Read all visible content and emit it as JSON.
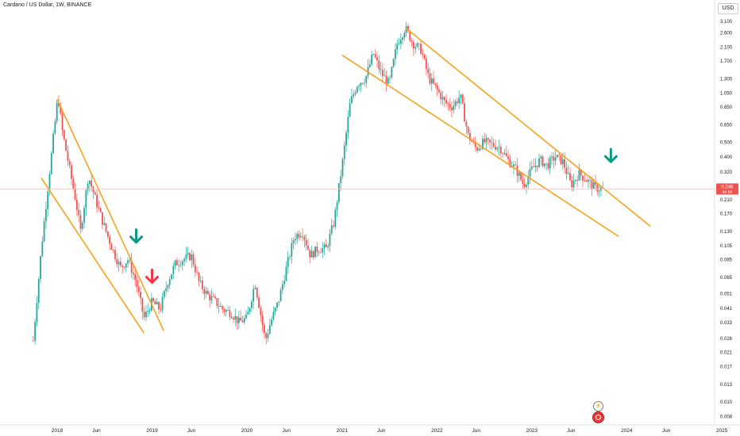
{
  "header": {
    "title": "Cardano / US Dollar, 1W, BINANCE",
    "currency_button": "USD"
  },
  "last_price": {
    "value": "0.246",
    "countdown": "4d 5h"
  },
  "icons": [
    "lightning-icon",
    "flag-icon"
  ],
  "colors": {
    "up": "#26a69a",
    "down": "#ef5350",
    "channel": "#f7a21b",
    "arrow_green": "#089981",
    "arrow_red": "#f23645",
    "price_line": "#f7c2c2"
  },
  "chart_data": {
    "type": "candlestick",
    "x_axis": {
      "tick_labels": [
        "2018",
        "Jun",
        "2019",
        "Jun",
        "2020",
        "Jun",
        "2021",
        "Jun",
        "2022",
        "Jun",
        "2023",
        "Jun",
        "2024",
        "Jun",
        "2025"
      ],
      "tick_dates": [
        "2018-01-01",
        "2018-06-01",
        "2019-01-01",
        "2019-06-01",
        "2020-01-01",
        "2020-06-01",
        "2021-01-01",
        "2021-06-01",
        "2022-01-01",
        "2022-06-01",
        "2023-01-01",
        "2023-06-01",
        "2024-01-01",
        "2024-06-01",
        "2025-01-01"
      ]
    },
    "y_axis": {
      "scale": "log",
      "tick_labels": [
        "3.100",
        "2.600",
        "2.100",
        "1.700",
        "1.300",
        "1.050",
        "0.850",
        "0.650",
        "0.500",
        "0.400",
        "0.320",
        "0.260",
        "0.210",
        "0.170",
        "0.130",
        "0.105",
        "0.085",
        "0.065",
        "0.051",
        "0.041",
        "0.033",
        "0.026",
        "0.021",
        "0.017",
        "0.013",
        "0.010",
        "0.008"
      ],
      "range": [
        0.0075,
        3.2
      ]
    },
    "grid": false,
    "price_anchors": [
      [
        "2017-10-01",
        0.025
      ],
      [
        "2017-11-01",
        0.1
      ],
      [
        "2017-12-01",
        0.3
      ],
      [
        "2018-01-04",
        1.0
      ],
      [
        "2018-01-20",
        0.6
      ],
      [
        "2018-02-15",
        0.35
      ],
      [
        "2018-03-15",
        0.2
      ],
      [
        "2018-04-01",
        0.13
      ],
      [
        "2018-05-01",
        0.3
      ],
      [
        "2018-06-01",
        0.2
      ],
      [
        "2018-07-01",
        0.14
      ],
      [
        "2018-08-01",
        0.1
      ],
      [
        "2018-09-01",
        0.075
      ],
      [
        "2018-10-01",
        0.085
      ],
      [
        "2018-11-01",
        0.06
      ],
      [
        "2018-12-01",
        0.035
      ],
      [
        "2019-01-01",
        0.045
      ],
      [
        "2019-02-01",
        0.04
      ],
      [
        "2019-03-01",
        0.06
      ],
      [
        "2019-04-01",
        0.08
      ],
      [
        "2019-05-01",
        0.085
      ],
      [
        "2019-06-01",
        0.09
      ],
      [
        "2019-07-01",
        0.06
      ],
      [
        "2019-08-01",
        0.05
      ],
      [
        "2019-09-01",
        0.045
      ],
      [
        "2019-10-01",
        0.04
      ],
      [
        "2019-11-01",
        0.038
      ],
      [
        "2019-12-01",
        0.033
      ],
      [
        "2020-01-01",
        0.035
      ],
      [
        "2020-02-01",
        0.06
      ],
      [
        "2020-03-12",
        0.025
      ],
      [
        "2020-04-01",
        0.033
      ],
      [
        "2020-05-01",
        0.045
      ],
      [
        "2020-06-01",
        0.075
      ],
      [
        "2020-07-01",
        0.12
      ],
      [
        "2020-08-01",
        0.13
      ],
      [
        "2020-09-01",
        0.09
      ],
      [
        "2020-10-01",
        0.1
      ],
      [
        "2020-11-01",
        0.1
      ],
      [
        "2020-12-01",
        0.15
      ],
      [
        "2021-01-01",
        0.35
      ],
      [
        "2021-02-01",
        0.9
      ],
      [
        "2021-03-01",
        1.2
      ],
      [
        "2021-04-01",
        1.3
      ],
      [
        "2021-05-01",
        1.9
      ],
      [
        "2021-06-01",
        1.4
      ],
      [
        "2021-07-01",
        1.2
      ],
      [
        "2021-08-01",
        2.2
      ],
      [
        "2021-09-01",
        2.8
      ],
      [
        "2021-10-01",
        2.2
      ],
      [
        "2021-11-01",
        2.0
      ],
      [
        "2021-12-01",
        1.3
      ],
      [
        "2022-01-01",
        1.1
      ],
      [
        "2022-02-01",
        0.9
      ],
      [
        "2022-03-01",
        0.85
      ],
      [
        "2022-04-01",
        1.0
      ],
      [
        "2022-05-01",
        0.55
      ],
      [
        "2022-06-01",
        0.45
      ],
      [
        "2022-07-01",
        0.5
      ],
      [
        "2022-08-01",
        0.48
      ],
      [
        "2022-09-01",
        0.46
      ],
      [
        "2022-10-01",
        0.38
      ],
      [
        "2022-11-01",
        0.33
      ],
      [
        "2022-12-01",
        0.26
      ],
      [
        "2023-01-01",
        0.33
      ],
      [
        "2023-02-01",
        0.38
      ],
      [
        "2023-03-01",
        0.35
      ],
      [
        "2023-04-01",
        0.4
      ],
      [
        "2023-05-01",
        0.37
      ],
      [
        "2023-06-01",
        0.26
      ],
      [
        "2023-07-01",
        0.31
      ],
      [
        "2023-08-01",
        0.28
      ],
      [
        "2023-09-01",
        0.25
      ],
      [
        "2023-10-01",
        0.246
      ]
    ],
    "channels": [
      {
        "upper": [
          [
            "2018-01-01",
            0.95
          ],
          [
            "2019-02-15",
            0.029
          ]
        ],
        "lower": [
          [
            "2017-11-01",
            0.29
          ],
          [
            "2018-12-01",
            0.028
          ]
        ]
      },
      {
        "upper": [
          [
            "2021-09-01",
            2.8
          ],
          [
            "2024-04-01",
            0.14
          ]
        ],
        "lower": [
          [
            "2021-01-01",
            1.85
          ],
          [
            "2023-12-01",
            0.12
          ]
        ]
      }
    ],
    "arrows": [
      {
        "date": "2018-11-01",
        "price": 0.11,
        "direction": "down",
        "color": "green"
      },
      {
        "date": "2019-01-01",
        "price": 0.06,
        "direction": "down",
        "color": "red"
      },
      {
        "date": "2023-11-01",
        "price": 0.37,
        "direction": "down",
        "color": "green"
      }
    ]
  }
}
